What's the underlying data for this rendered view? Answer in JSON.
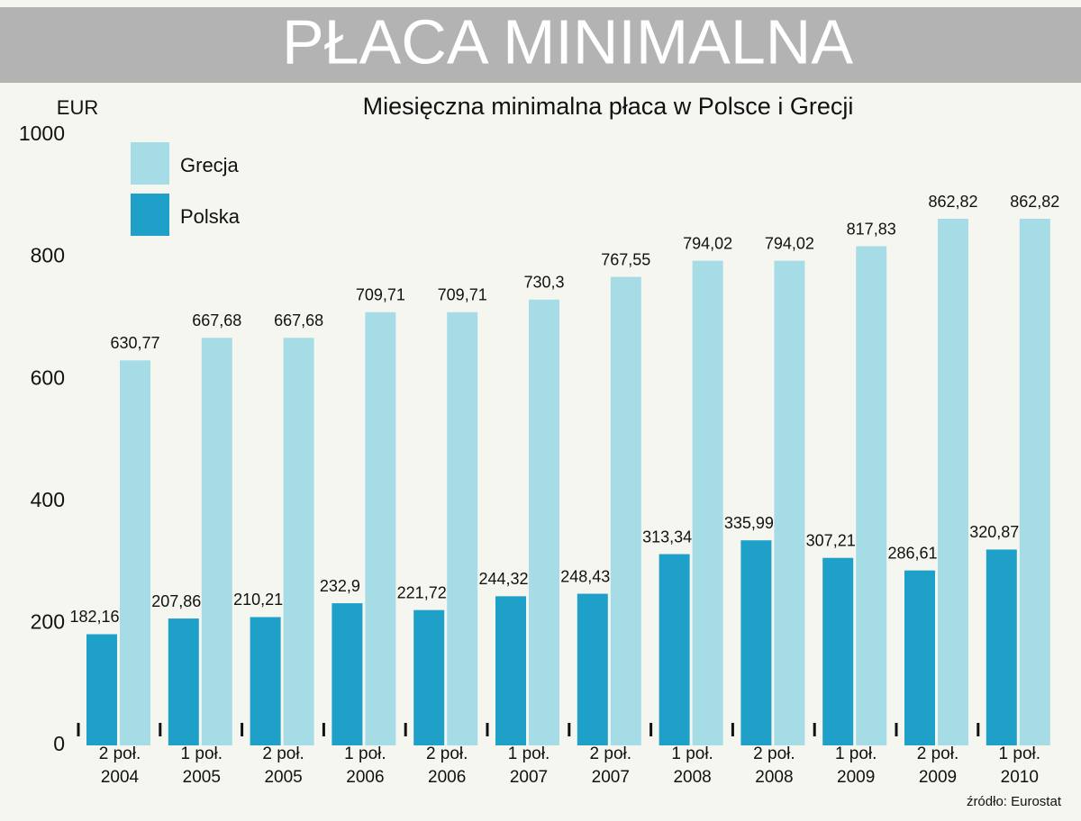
{
  "chart_data": {
    "type": "bar",
    "title": "PŁACA MINIMALNA",
    "subtitle": "Miesięczna minimalna płaca w Polsce i Grecji",
    "y_label": "EUR",
    "source": "źródło: Eurostat",
    "categories": [
      [
        "2 poł.",
        "2004"
      ],
      [
        "1 poł.",
        "2005"
      ],
      [
        "2 poł.",
        "2005"
      ],
      [
        "1 poł.",
        "2006"
      ],
      [
        "2 poł.",
        "2006"
      ],
      [
        "1 poł.",
        "2007"
      ],
      [
        "2 poł.",
        "2007"
      ],
      [
        "1 poł.",
        "2008"
      ],
      [
        "2 poł.",
        "2008"
      ],
      [
        "1 poł.",
        "2009"
      ],
      [
        "2 poł.",
        "2009"
      ],
      [
        "1 poł.",
        "2010"
      ]
    ],
    "series": [
      {
        "name": "Polska",
        "color": "#1ea0c9",
        "values": [
          182.16,
          207.86,
          210.21,
          232.9,
          221.72,
          244.32,
          248.43,
          313.34,
          335.99,
          307.21,
          286.61,
          320.87
        ],
        "value_labels": [
          "182,16",
          "207,86",
          "210,21",
          "232,9",
          "221,72",
          "244,32",
          "248,43",
          "313,34",
          "335,99",
          "307,21",
          "286,61",
          "320,87"
        ]
      },
      {
        "name": "Grecja",
        "color": "#a6dce6",
        "values": [
          630.77,
          667.68,
          667.68,
          709.71,
          709.71,
          730.3,
          767.55,
          794.02,
          794.02,
          817.83,
          862.82,
          862.82
        ],
        "value_labels": [
          "630,77",
          "667,68",
          "667,68",
          "709,71",
          "709,71",
          "730,3",
          "767,55",
          "794,02",
          "794,02",
          "817,83",
          "862,82",
          "862,82"
        ]
      }
    ],
    "ylim": [
      0,
      1000
    ],
    "yticks": [
      0,
      200,
      400,
      600,
      800,
      1000
    ],
    "grid": false
  }
}
